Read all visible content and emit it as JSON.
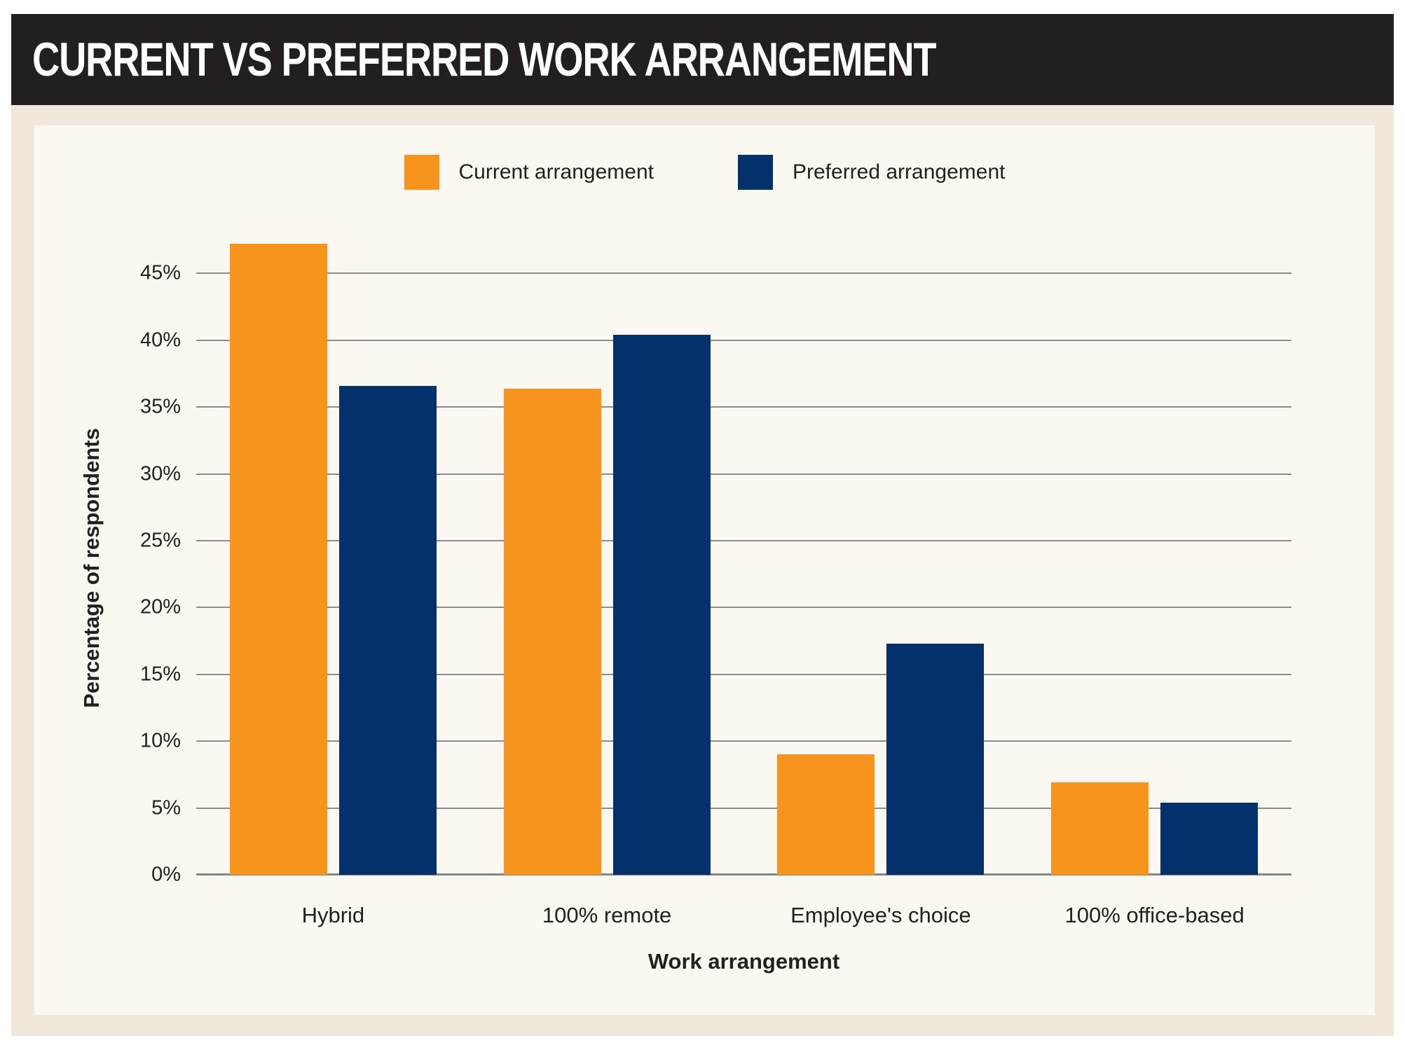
{
  "header": {
    "title": "CURRENT VS PREFERRED WORK ARRANGEMENT"
  },
  "colors": {
    "header_bg": "#231F20",
    "frame_bg": "#EFE8DB",
    "panel_bg": "#FAF8F1",
    "current_orange": "#F7941E",
    "preferred_navy": "#04316B",
    "gridline_gray": "#8C8D90",
    "text_dark": "#231F20"
  },
  "chart_data": {
    "type": "bar",
    "title": "CURRENT VS PREFERRED WORK ARRANGEMENT",
    "categories": [
      "Hybrid",
      "100% remote",
      "Employee's choice",
      "100% office-based"
    ],
    "series": [
      {
        "name": "Current arrangement",
        "color": "#F7941E",
        "values": [
          47.2,
          36.4,
          9.0,
          6.9
        ]
      },
      {
        "name": "Preferred arrangement",
        "color": "#04316B",
        "values": [
          36.6,
          40.4,
          17.3,
          5.4
        ]
      }
    ],
    "xlabel": "Work arrangement",
    "ylabel": "Percentage of respondents",
    "ylim": [
      0,
      50
    ],
    "yticks": [
      0,
      5,
      10,
      15,
      20,
      25,
      30,
      35,
      40,
      45
    ],
    "ytick_labels": [
      "0%",
      "5%",
      "10%",
      "15%",
      "20%",
      "25%",
      "30%",
      "35%",
      "40%",
      "45%"
    ],
    "grid": true,
    "legend_position": "top"
  }
}
